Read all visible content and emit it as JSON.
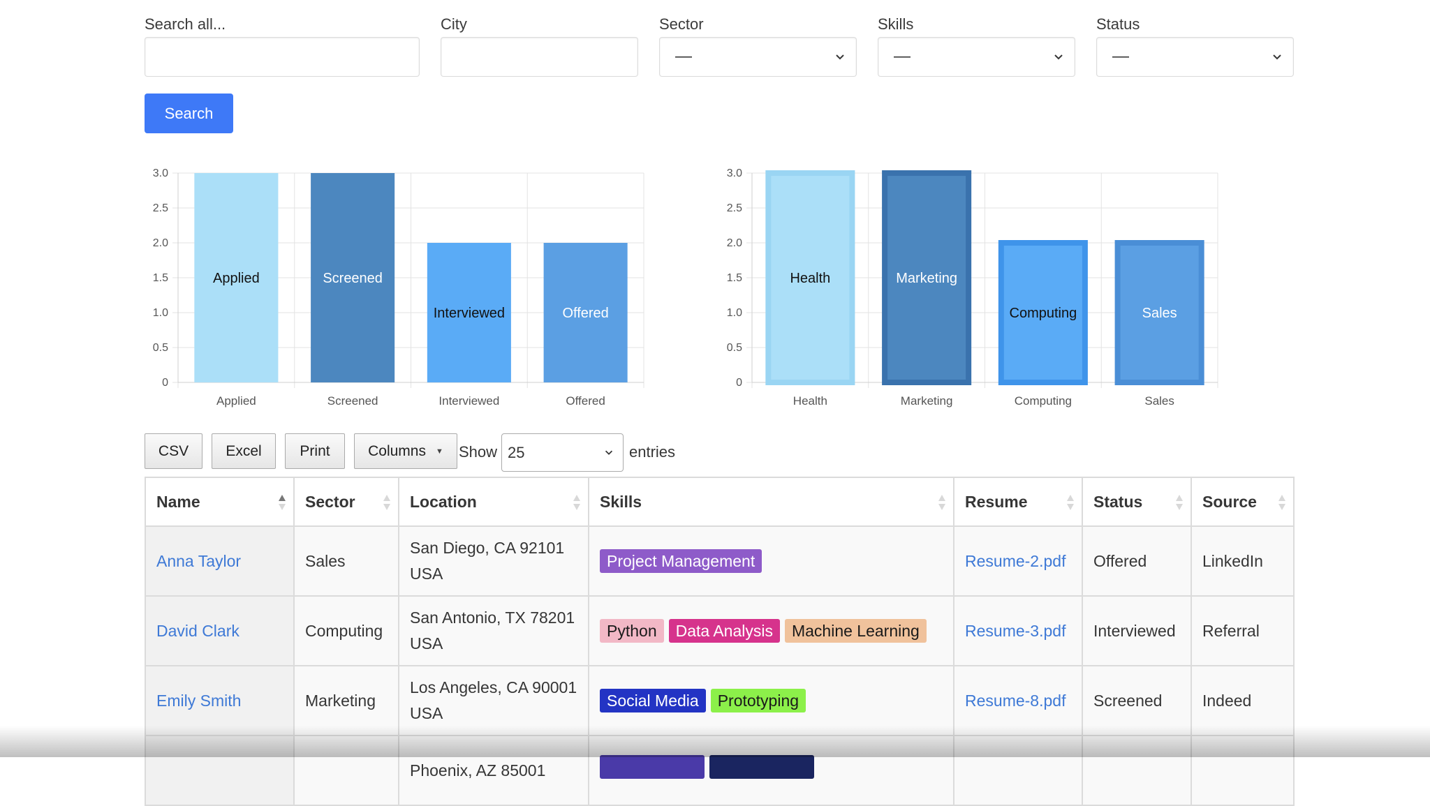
{
  "filters": {
    "search": {
      "label": "Search all...",
      "value": "",
      "placeholder": ""
    },
    "city": {
      "label": "City",
      "value": "",
      "placeholder": ""
    },
    "sector": {
      "label": "Sector",
      "value": "—"
    },
    "skills": {
      "label": "Skills",
      "value": "—"
    },
    "status": {
      "label": "Status",
      "value": "—"
    },
    "search_button": "Search"
  },
  "colors": {
    "primary": "#3e79f7",
    "link": "#3e79d6",
    "bar_light": "#a9ddf7",
    "bar_dark": "#4a85bf",
    "bar_mid": "#5caaf5",
    "bar_blue": "#5a9fe6"
  },
  "chart_data": [
    {
      "type": "bar",
      "categories": [
        "Applied",
        "Screened",
        "Interviewed",
        "Offered"
      ],
      "values": [
        3,
        3,
        2,
        2
      ],
      "ylim": [
        0,
        3
      ],
      "yticks": [
        "0",
        "0.5",
        "1.0",
        "1.5",
        "2.0",
        "2.5",
        "3.0"
      ],
      "bar_labels": [
        "Applied",
        "Screened",
        "Interviewed",
        "Offered"
      ],
      "colors": [
        "#abdff8",
        "#4c87bf",
        "#5aabf6",
        "#5b9fe3"
      ],
      "label_colors": [
        "#111111",
        "#ffffff",
        "#111111",
        "#ffffff"
      ],
      "grid": true,
      "title": "",
      "xlabel": "",
      "ylabel": ""
    },
    {
      "type": "bar",
      "categories": [
        "Health",
        "Marketing",
        "Computing",
        "Sales"
      ],
      "values": [
        3,
        3,
        2,
        2
      ],
      "ylim": [
        0,
        3
      ],
      "yticks": [
        "0",
        "0.5",
        "1.0",
        "1.5",
        "2.0",
        "2.5",
        "3.0"
      ],
      "bar_labels": [
        "Health",
        "Marketing",
        "Computing",
        "Sales"
      ],
      "colors": [
        "#abdff8",
        "#4c87bf",
        "#5aabf6",
        "#5b9fe3"
      ],
      "border_colors": [
        "#9ad5f3",
        "#3a72ad",
        "#3f94ea",
        "#4a8ed6"
      ],
      "label_colors": [
        "#111111",
        "#ffffff",
        "#111111",
        "#ffffff"
      ],
      "grid": true,
      "title": "",
      "xlabel": "",
      "ylabel": ""
    }
  ],
  "table_controls": {
    "csv": "CSV",
    "excel": "Excel",
    "print": "Print",
    "columns": "Columns",
    "show": "Show",
    "page_length": "25",
    "entries": "entries"
  },
  "table": {
    "headers": [
      "Name",
      "Sector",
      "Location",
      "Skills",
      "Resume",
      "Status",
      "Source"
    ],
    "rows": [
      {
        "name": "Anna Taylor",
        "sector": "Sales",
        "location_line1": "San Diego, CA 92101",
        "location_line2": "USA",
        "skills": [
          {
            "label": "Project Management",
            "bg": "#8e5bc9",
            "fg": "#ffffff"
          }
        ],
        "resume": "Resume-2.pdf",
        "status": "Offered",
        "source": "LinkedIn"
      },
      {
        "name": "David Clark",
        "sector": "Computing",
        "location_line1": "San Antonio, TX 78201",
        "location_line2": "USA",
        "skills": [
          {
            "label": "Python",
            "bg": "#f2b8c6",
            "fg": "#1a1a1a"
          },
          {
            "label": "Data Analysis",
            "bg": "#d6338c",
            "fg": "#ffffff"
          },
          {
            "label": "Machine Learning",
            "bg": "#f0c29c",
            "fg": "#1a1a1a"
          }
        ],
        "resume": "Resume-3.pdf",
        "status": "Interviewed",
        "source": "Referral"
      },
      {
        "name": "Emily Smith",
        "sector": "Marketing",
        "location_line1": "Los Angeles, CA 90001",
        "location_line2": "USA",
        "skills": [
          {
            "label": "Social Media",
            "bg": "#2334c4",
            "fg": "#ffffff"
          },
          {
            "label": "Prototyping",
            "bg": "#8cf04a",
            "fg": "#1a1a1a"
          }
        ],
        "resume": "Resume-8.pdf",
        "status": "Screened",
        "source": "Indeed"
      },
      {
        "name": "",
        "sector": "",
        "location_line1": "Phoenix, AZ 85001",
        "location_line2": "",
        "skills": [
          {
            "label": "",
            "bg": "#4a3aa8",
            "fg": "#ffffff"
          },
          {
            "label": "",
            "bg": "#1a2560",
            "fg": "#ffffff"
          }
        ],
        "resume": "",
        "status": "",
        "source": ""
      }
    ]
  }
}
